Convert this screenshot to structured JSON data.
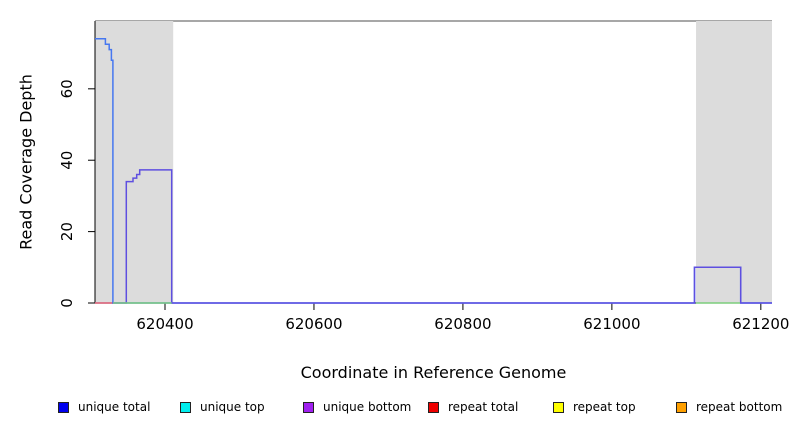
{
  "chart_data": {
    "type": "line",
    "title": "",
    "xlabel": "Coordinate in Reference Genome",
    "ylabel": "Read Coverage Depth",
    "xlim": [
      620306,
      621215
    ],
    "ylim": [
      0,
      79
    ],
    "x_ticks": [
      620400,
      620600,
      620800,
      621000,
      621200
    ],
    "y_ticks": [
      0,
      20,
      40,
      60
    ],
    "grid": false,
    "frame_top_color": "#8a8a8a",
    "axis_color": "#000000",
    "highlight_regions": [
      {
        "name": "repeat-region-left",
        "x0": 620306,
        "x1": 620411,
        "color": "#dcdcdc"
      },
      {
        "name": "repeat-region-right",
        "x0": 621113,
        "x1": 621215,
        "color": "#dcdcdc"
      }
    ],
    "series": [
      {
        "name": "unique total",
        "line_color": "#4677f0",
        "segments": [
          [
            [
              620306,
              74
            ],
            [
              620320,
              74
            ],
            [
              620320,
              72.5
            ],
            [
              620325,
              72.5
            ],
            [
              620325,
              71
            ],
            [
              620328,
              71
            ],
            [
              620328,
              68
            ],
            [
              620330,
              68
            ],
            [
              620330,
              0
            ],
            [
              621111,
              0
            ],
            [
              621111,
              10
            ],
            [
              621173,
              10
            ],
            [
              621173,
              0
            ],
            [
              621215,
              0
            ]
          ]
        ]
      },
      {
        "name": "unique bottom",
        "line_color": "#5e4fe0",
        "segments": [
          [
            [
              620306,
              0
            ],
            [
              620348,
              0
            ],
            [
              620348,
              34
            ],
            [
              620357,
              34
            ],
            [
              620357,
              35
            ],
            [
              620362,
              35
            ],
            [
              620362,
              36
            ],
            [
              620366,
              36
            ],
            [
              620366,
              37.3
            ],
            [
              620409,
              37.3
            ],
            [
              620409,
              0
            ],
            [
              621111,
              0
            ],
            [
              621111,
              10
            ],
            [
              621173,
              10
            ],
            [
              621173,
              0
            ],
            [
              621215,
              0
            ]
          ]
        ]
      },
      {
        "name": "unique top",
        "line_color": "#7ccd7c",
        "segments": [
          [
            [
              620330,
              0
            ],
            [
              620409,
              0
            ]
          ],
          [
            [
              621113,
              0
            ],
            [
              621172,
              0
            ]
          ]
        ]
      },
      {
        "name": "repeat total",
        "line_color": "#ee7070",
        "segments": [
          [
            [
              620306,
              0
            ],
            [
              620329,
              0
            ]
          ]
        ]
      }
    ],
    "legend": {
      "position": "bottom",
      "items": [
        {
          "label": "unique total",
          "color": "#0000ee"
        },
        {
          "label": "unique top",
          "color": "#00eeee"
        },
        {
          "label": "unique bottom",
          "color": "#a020f0"
        },
        {
          "label": "repeat total",
          "color": "#ee0000"
        },
        {
          "label": "repeat top",
          "color": "#ffff00"
        },
        {
          "label": "repeat bottom",
          "color": "#ffa000"
        }
      ]
    }
  }
}
